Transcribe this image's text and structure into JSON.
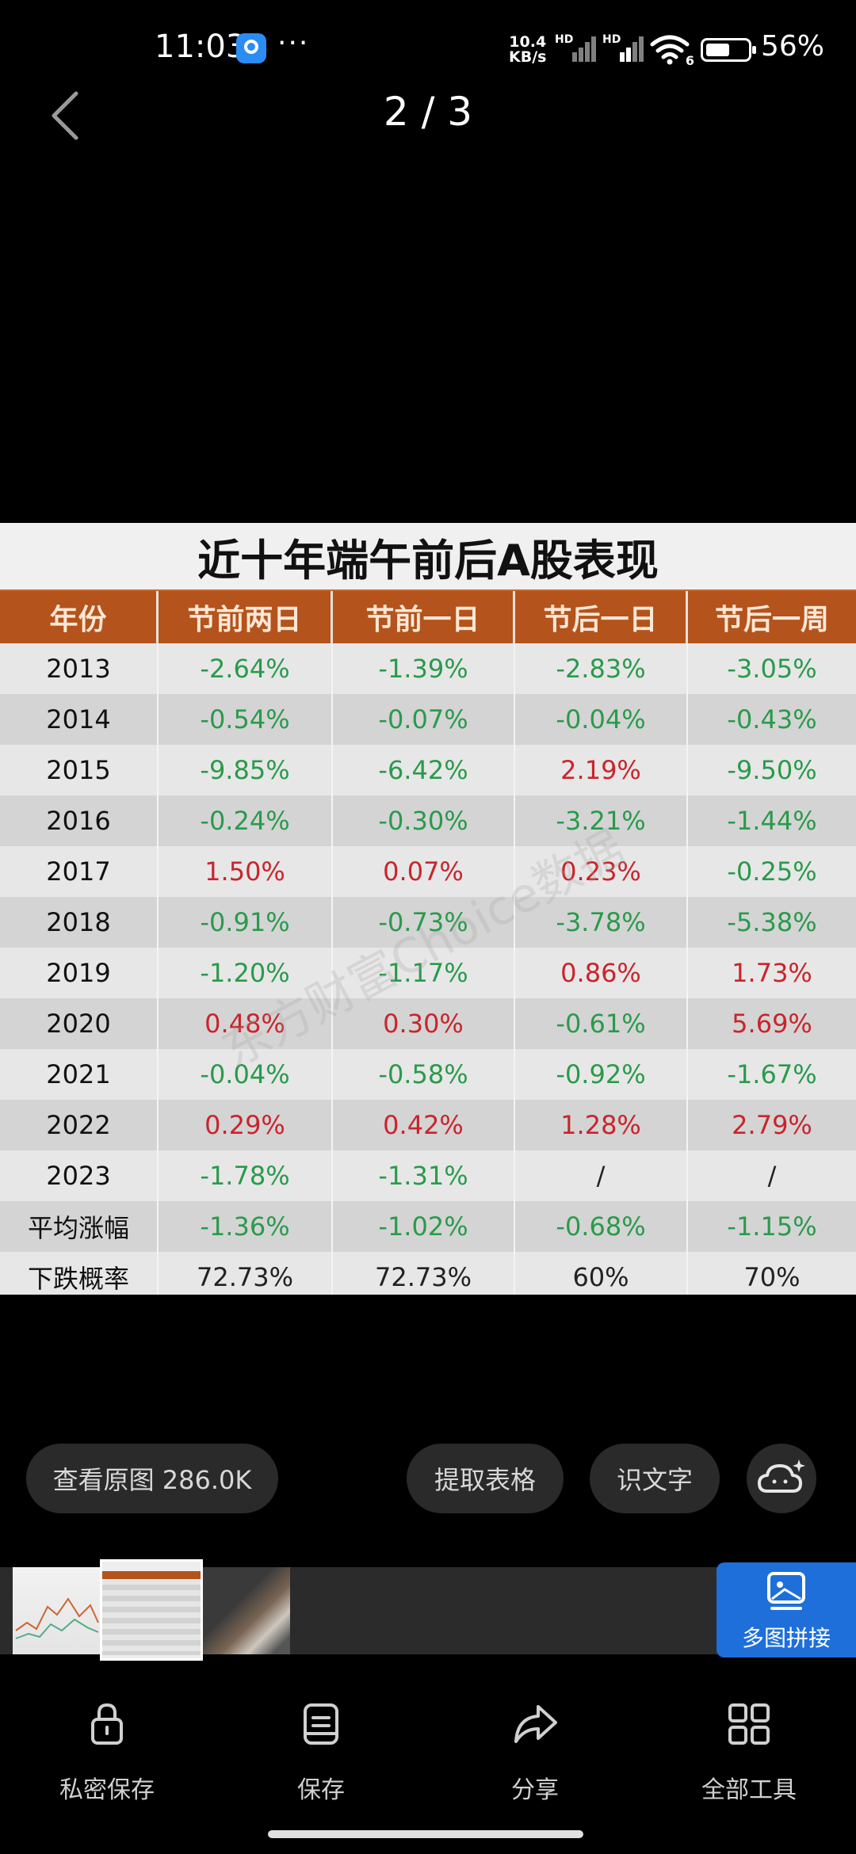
{
  "status_bar": {
    "time": "11:03",
    "more": "···",
    "net_speed_value": "10.4",
    "net_speed_unit": "KB/s",
    "hd1": "HD",
    "hd2": "HD",
    "wifi_badge": "6",
    "battery_level": 0.56,
    "battery_percent": "56%"
  },
  "header": {
    "page_counter": "2 / 3"
  },
  "image": {
    "title": "近十年端午前后A股表现",
    "watermark": "东方财富Choice数据",
    "columns": [
      "年份",
      "节前两日",
      "节前一日",
      "节后一日",
      "节后一周"
    ],
    "rows": [
      [
        "2013",
        "-2.64%",
        "-1.39%",
        "-2.83%",
        "-3.05%"
      ],
      [
        "2014",
        "-0.54%",
        "-0.07%",
        "-0.04%",
        "-0.43%"
      ],
      [
        "2015",
        "-9.85%",
        "-6.42%",
        "2.19%",
        "-9.50%"
      ],
      [
        "2016",
        "-0.24%",
        "-0.30%",
        "-3.21%",
        "-1.44%"
      ],
      [
        "2017",
        "1.50%",
        "0.07%",
        "0.23%",
        "-0.25%"
      ],
      [
        "2018",
        "-0.91%",
        "-0.73%",
        "-3.78%",
        "-5.38%"
      ],
      [
        "2019",
        "-1.20%",
        "-1.17%",
        "0.86%",
        "1.73%"
      ],
      [
        "2020",
        "0.48%",
        "0.30%",
        "-0.61%",
        "5.69%"
      ],
      [
        "2021",
        "-0.04%",
        "-0.58%",
        "-0.92%",
        "-1.67%"
      ],
      [
        "2022",
        "0.29%",
        "0.42%",
        "1.28%",
        "2.79%"
      ],
      [
        "2023",
        "-1.78%",
        "-1.31%",
        "/",
        "/"
      ],
      [
        "平均涨幅",
        "-1.36%",
        "-1.02%",
        "-0.68%",
        "-1.15%"
      ],
      [
        "下跌概率",
        "72.73%",
        "72.73%",
        "60%",
        "70%"
      ]
    ],
    "colors": {
      "header_bg": "#b4531b",
      "negative": "#2a9a4b",
      "positive": "#c8252b"
    }
  },
  "actions": {
    "view_original": "查看原图 286.0K",
    "extract_table": "提取表格",
    "ocr_text": "识文字"
  },
  "strip": {
    "merge_label": "多图拼接"
  },
  "bottom_nav": {
    "private_save": "私密保存",
    "save": "保存",
    "share": "分享",
    "all_tools": "全部工具"
  }
}
